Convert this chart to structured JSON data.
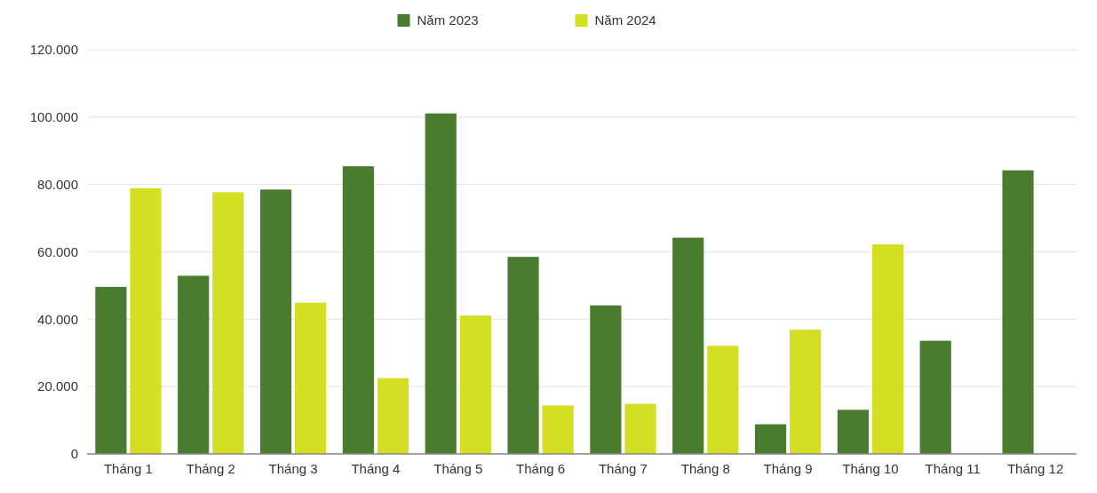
{
  "chart_data": {
    "type": "bar",
    "categories": [
      "Tháng 1",
      "Tháng 2",
      "Tháng 3",
      "Tháng 4",
      "Tháng 5",
      "Tháng 6",
      "Tháng 7",
      "Tháng 8",
      "Tháng 9",
      "Tháng 10",
      "Tháng 11",
      "Tháng 12"
    ],
    "series": [
      {
        "name": "Năm 2023",
        "color": "#4a7c2f",
        "values": [
          49600,
          52900,
          78500,
          85400,
          101100,
          58500,
          44100,
          64200,
          8800,
          13100,
          33600,
          84200
        ]
      },
      {
        "name": "Năm 2024",
        "color": "#d4de22",
        "values": [
          78900,
          77700,
          44900,
          22500,
          41100,
          14400,
          14900,
          32100,
          36900,
          62200,
          null,
          null
        ]
      }
    ],
    "ylim": [
      0,
      120000
    ],
    "yticks": [
      0,
      {
        "value": 20000,
        "label": "20.000"
      },
      {
        "value": 40000,
        "label": "40.000"
      },
      {
        "value": 60000,
        "label": "60.000"
      },
      {
        "value": 80000,
        "label": "80.000"
      },
      {
        "value": 100000,
        "label": "100.000"
      },
      {
        "value": 120000,
        "label": "120.000"
      }
    ],
    "grid": "y",
    "legend": "top"
  }
}
